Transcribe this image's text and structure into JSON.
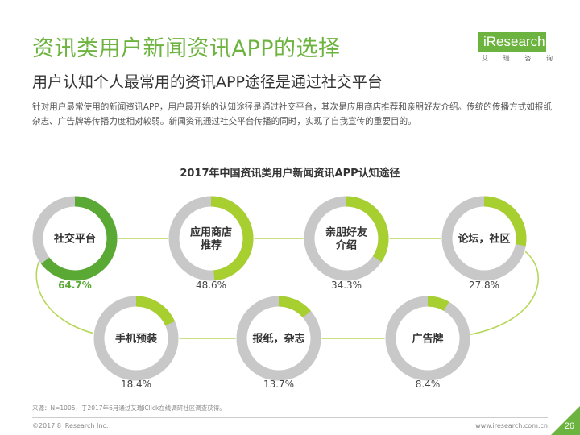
{
  "header": {
    "title": "资讯类用户新闻资讯APP的选择",
    "subtitle": "用户认知个人最常用的资讯APP途径是通过社交平台",
    "description": "针对用户最常使用的新闻资讯APP，用户最开始的认知途径是通过社交平台，其次是应用商店推荐和亲朋好友介绍。传统的传播方式如报纸杂志、广告牌等传播力度相对较弱。新闻资讯通过社交平台传播的同时，实现了自我宣传的重要目的。"
  },
  "logo": {
    "text": "iResearch",
    "sub": [
      "艾",
      "瑞",
      "咨",
      "询"
    ],
    "color": "#6db33f"
  },
  "chart_data": {
    "type": "donut",
    "title": "2017年中国资讯类用户新闻资讯APP认知途径",
    "unit": "%",
    "items": [
      {
        "label": [
          "社交平台"
        ],
        "value": 64.7,
        "value_label": "64.7%",
        "highlight": true
      },
      {
        "label": [
          "应用商店",
          "推荐"
        ],
        "value": 48.6,
        "value_label": "48.6%"
      },
      {
        "label": [
          "亲朋好友",
          "介绍"
        ],
        "value": 34.3,
        "value_label": "34.3%"
      },
      {
        "label": [
          "论坛，社区"
        ],
        "value": 27.8,
        "value_label": "27.8%"
      },
      {
        "label": [
          "手机预装"
        ],
        "value": 18.4,
        "value_label": "18.4%"
      },
      {
        "label": [
          "报纸，杂志"
        ],
        "value": 13.7,
        "value_label": "13.7%"
      },
      {
        "label": [
          "广告牌"
        ],
        "value": 8.4,
        "value_label": "8.4%"
      }
    ],
    "colors": {
      "highlight": "#5aa934",
      "fill": "#a6cf2f",
      "track": "#c8c8c8",
      "connector": "#b6d85a",
      "highlight_text": "#5aa934",
      "text": "#444444"
    }
  },
  "footer": {
    "source": "来源：N=1005，于2017年6月通过艾瑞iClick在线调研社区调查获得。",
    "copyright": "©2017.8 iResearch Inc.",
    "website": "www.iresearch.com.cn",
    "page": "26"
  }
}
